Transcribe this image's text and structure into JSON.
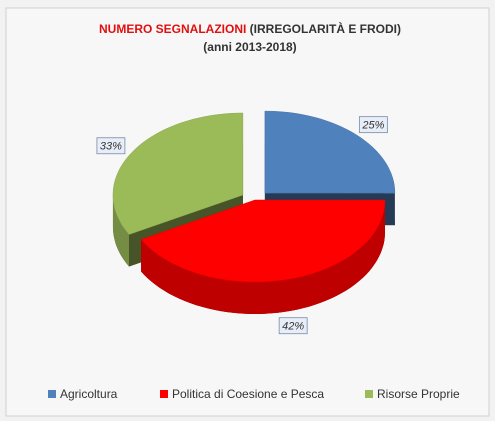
{
  "chart_data": {
    "type": "pie",
    "title": [
      "NUMERO SEGNALAZIONI",
      "(IRREGOLARITÀ E FRODI)"
    ],
    "subtitle": "(anni 2013-2018)",
    "categories": [
      "Agricoltura",
      "Politica di Coesione e Pesca",
      "Risorse Proprie"
    ],
    "values": [
      25,
      42,
      33
    ],
    "value_labels": [
      "25%",
      "42%",
      "33%"
    ],
    "colors": [
      "#4f81bd",
      "#ff0000",
      "#9bbb59"
    ],
    "legend": "bottom"
  }
}
